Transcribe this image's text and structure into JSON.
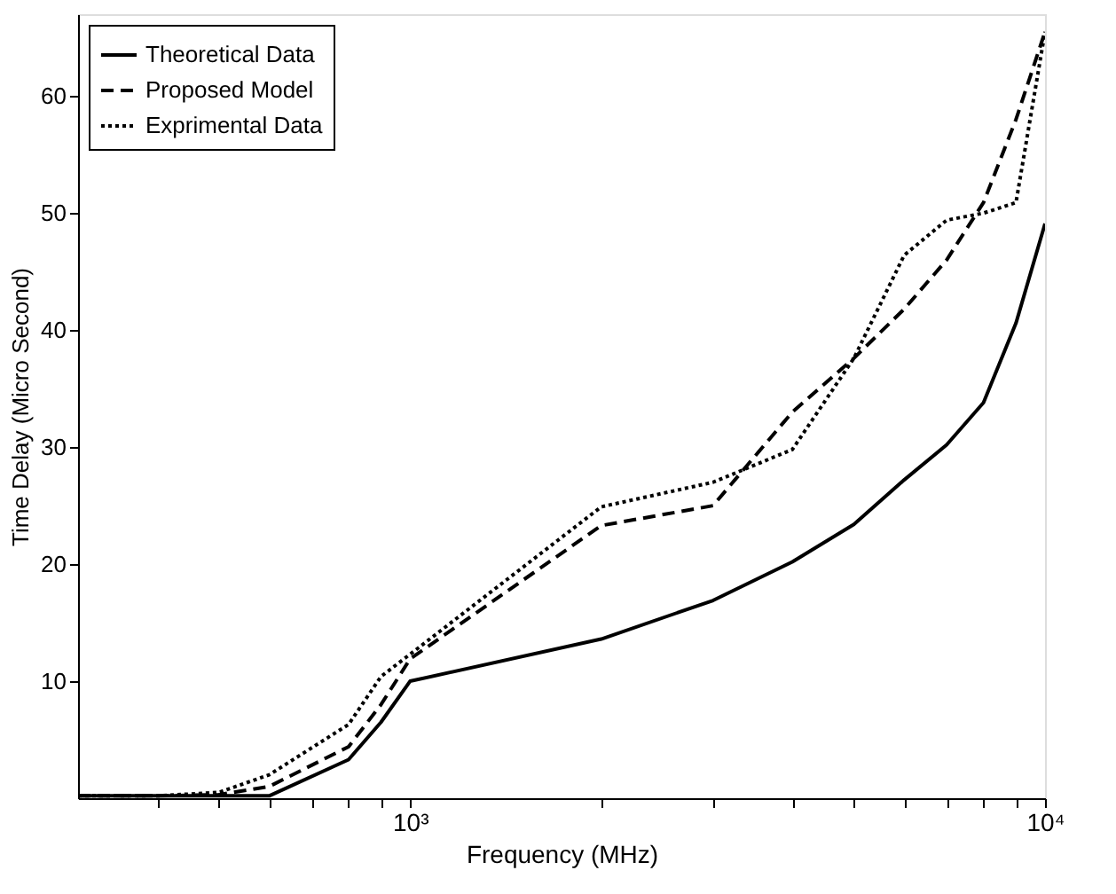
{
  "chart_data": {
    "type": "line",
    "xlabel": "Frequency (MHz)",
    "ylabel": "Time Delay (Micro Second)",
    "log": "x",
    "xlim": [
      300,
      10000
    ],
    "ylim": [
      0,
      67
    ],
    "xticks": [
      {
        "value": 400,
        "label": null
      },
      {
        "value": 500,
        "label": null
      },
      {
        "value": 600,
        "label": null
      },
      {
        "value": 700,
        "label": null
      },
      {
        "value": 800,
        "label": null
      },
      {
        "value": 900,
        "label": null
      },
      {
        "value": 1000,
        "label": "10³"
      },
      {
        "value": 2000,
        "label": null
      },
      {
        "value": 3000,
        "label": null
      },
      {
        "value": 4000,
        "label": null
      },
      {
        "value": 5000,
        "label": null
      },
      {
        "value": 6000,
        "label": null
      },
      {
        "value": 7000,
        "label": null
      },
      {
        "value": 8000,
        "label": null
      },
      {
        "value": 9000,
        "label": null
      },
      {
        "value": 10000,
        "label": "10⁴"
      }
    ],
    "yticks": [
      10,
      20,
      30,
      40,
      50,
      60
    ],
    "x": [
      300,
      400,
      500,
      600,
      800,
      900,
      1000,
      2000,
      3000,
      4000,
      5000,
      6000,
      7000,
      8000,
      9000,
      10000
    ],
    "series": [
      {
        "name": "Theoretical Data",
        "color": "#000000",
        "line_style": "solid",
        "values": [
          0.2,
          0.2,
          0.2,
          0.2,
          3.3,
          6.5,
          10,
          13.6,
          16.9,
          20.2,
          23.4,
          27.2,
          30.2,
          33.8,
          40.6,
          49.1
        ]
      },
      {
        "name": "Proposed Model",
        "color": "#000000",
        "line_style": "dashed",
        "values": [
          0.2,
          0.2,
          0.3,
          1,
          4.4,
          8,
          11.9,
          23.3,
          25,
          33,
          37.6,
          41.8,
          46,
          50.9,
          58,
          65.5
        ]
      },
      {
        "name": "Exprimental Data",
        "color": "#000000",
        "line_style": "dotted",
        "values": [
          0.2,
          0.2,
          0.5,
          2,
          6.3,
          10.4,
          12.3,
          24.9,
          27,
          29.8,
          37.6,
          46.4,
          49.4,
          50,
          50.9,
          65.5
        ]
      }
    ],
    "legend": "top left",
    "grid": false,
    "marker": "none"
  }
}
